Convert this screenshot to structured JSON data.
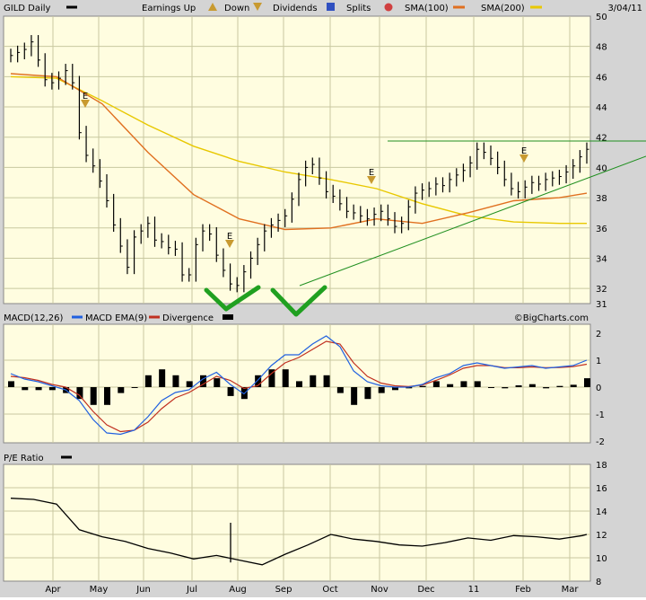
{
  "header": {
    "ticker": "GILD Daily",
    "earnings_label": "Earnings Up",
    "down_label": "Down",
    "dividends_label": "Dividends",
    "splits_label": "Splits",
    "sma100_label": "SMA(100)",
    "sma200_label": "SMA(200)",
    "date": "3/04/11"
  },
  "colors": {
    "panel_bg": "#fffde0",
    "frame_bg": "#d4d4d4",
    "grid": "#c8c8a0",
    "sma100": "#e07020",
    "sma200": "#e8c800",
    "trendline": "#209020",
    "macd": "#2060e0",
    "ema": "#c03020",
    "check": "#20a020",
    "earnings_marker": "#c89a30"
  },
  "price_panel": {
    "ytick_labels": [
      "50",
      "48",
      "46",
      "44",
      "42",
      "40",
      "38",
      "36",
      "34",
      "32",
      "31"
    ],
    "earnings_markers": [
      "E",
      "E",
      "E",
      "E"
    ]
  },
  "macd_panel": {
    "title": "MACD(12,26)",
    "ema_label": "MACD EMA(9)",
    "divergence_label": "Divergence",
    "watermark": "©BigCharts.com",
    "ytick_labels": [
      "2",
      "1",
      "0",
      "-1",
      "-2"
    ]
  },
  "pe_panel": {
    "title": "P/E Ratio",
    "ytick_labels": [
      "18",
      "16",
      "14",
      "12",
      "10",
      "8"
    ]
  },
  "x_labels": [
    "Apr",
    "May",
    "Jun",
    "Jul",
    "Aug",
    "Sep",
    "Oct",
    "Nov",
    "Dec",
    "11",
    "Feb",
    "Mar"
  ],
  "chart_data": [
    {
      "type": "line",
      "subtype": "ohlc",
      "ticker": "GILD",
      "ylim": [
        31,
        50
      ],
      "x_ticks": [
        "Apr",
        "May",
        "Jun",
        "Jul",
        "Aug",
        "Sep",
        "Oct",
        "Nov",
        "Dec",
        "11",
        "Feb",
        "Mar"
      ],
      "series": [
        {
          "name": "GILD Daily",
          "x": [
            0,
            3,
            6,
            9,
            12,
            15,
            18,
            21,
            24,
            27,
            30,
            33,
            36,
            39,
            42,
            45,
            48,
            51,
            54,
            57,
            60,
            63,
            66,
            69,
            72,
            75,
            78,
            81,
            84,
            87,
            90,
            93,
            96,
            99,
            102,
            105,
            108,
            111,
            114,
            117,
            120,
            123,
            126,
            129,
            132,
            135,
            138,
            141,
            144,
            147,
            150,
            153,
            156,
            159,
            162,
            165,
            168,
            171,
            174,
            177,
            180,
            183,
            186,
            189,
            192,
            195,
            198,
            201,
            204,
            207,
            210,
            213,
            216,
            219,
            222,
            225,
            228,
            231,
            234,
            237,
            240,
            243,
            246,
            249,
            252
          ],
          "values": [
            47.4,
            47.6,
            47.8,
            48.3,
            47.1,
            45.8,
            45.6,
            45.9,
            46.4,
            45.6,
            42.3,
            40.8,
            40.1,
            39.1,
            37.8,
            36.2,
            34.8,
            33.4,
            35.4,
            35.8,
            36.3,
            35.2,
            35.1,
            34.7,
            34.6,
            32.9,
            32.9,
            34.9,
            35.8,
            35.6,
            34.2,
            33.2,
            32.3,
            32.2,
            33.1,
            34.0,
            34.9,
            35.8,
            36.2,
            36.5,
            36.8,
            37.9,
            39.2,
            40.0,
            40.2,
            39.3,
            38.4,
            38.1,
            37.6,
            37.1,
            37.0,
            36.8,
            36.6,
            36.9,
            37.1,
            36.6,
            36.1,
            36.3,
            37.4,
            38.3,
            38.5,
            38.6,
            38.9,
            38.8,
            39.2,
            39.5,
            39.8,
            40.3,
            41.2,
            41.0,
            40.6,
            40.0,
            39.2,
            38.6,
            38.4,
            38.7,
            39.0,
            38.9,
            39.2,
            39.3,
            39.4,
            39.7,
            40.1,
            40.7,
            41.2
          ]
        },
        {
          "name": "SMA(100)",
          "x": [
            0,
            20,
            40,
            60,
            80,
            100,
            120,
            140,
            160,
            180,
            200,
            220,
            240,
            252
          ],
          "values": [
            46.2,
            46.0,
            44.2,
            41.0,
            38.2,
            36.6,
            35.9,
            36.0,
            36.6,
            36.3,
            37.0,
            37.8,
            38.0,
            38.3
          ]
        },
        {
          "name": "SMA(200)",
          "x": [
            0,
            20,
            40,
            60,
            80,
            100,
            120,
            140,
            160,
            180,
            200,
            220,
            240,
            252
          ],
          "values": [
            46.0,
            45.9,
            44.4,
            42.8,
            41.4,
            40.4,
            39.7,
            39.2,
            38.6,
            37.6,
            36.8,
            36.4,
            36.3,
            36.3
          ]
        }
      ]
    },
    {
      "type": "line",
      "subtype": "macd",
      "ylim": [
        -2,
        2
      ],
      "series": [
        {
          "name": "MACD(12,26)",
          "x": [
            0,
            6,
            12,
            18,
            24,
            30,
            36,
            42,
            48,
            54,
            60,
            66,
            72,
            78,
            84,
            90,
            96,
            102,
            108,
            114,
            120,
            126,
            132,
            138,
            144,
            150,
            156,
            162,
            168,
            174,
            180,
            186,
            192,
            198,
            204,
            210,
            216,
            222,
            228,
            234,
            240,
            246,
            252
          ],
          "values": [
            0.5,
            0.3,
            0.2,
            0.05,
            -0.1,
            -0.5,
            -1.2,
            -1.7,
            -1.75,
            -1.6,
            -1.1,
            -0.5,
            -0.2,
            -0.1,
            0.3,
            0.55,
            0.1,
            -0.25,
            0.25,
            0.8,
            1.2,
            1.2,
            1.6,
            1.9,
            1.5,
            0.6,
            0.2,
            0.05,
            0.0,
            0.0,
            0.1,
            0.35,
            0.5,
            0.8,
            0.9,
            0.8,
            0.7,
            0.75,
            0.8,
            0.7,
            0.75,
            0.8,
            1.0
          ]
        },
        {
          "name": "MACD EMA(9)",
          "x": [
            0,
            6,
            12,
            18,
            24,
            30,
            36,
            42,
            48,
            54,
            60,
            66,
            72,
            78,
            84,
            90,
            96,
            102,
            108,
            114,
            120,
            126,
            132,
            138,
            144,
            150,
            156,
            162,
            168,
            174,
            180,
            186,
            192,
            198,
            204,
            210,
            216,
            222,
            228,
            234,
            240,
            246,
            252
          ],
          "values": [
            0.4,
            0.35,
            0.25,
            0.1,
            0.0,
            -0.3,
            -0.9,
            -1.4,
            -1.65,
            -1.6,
            -1.3,
            -0.8,
            -0.4,
            -0.2,
            0.1,
            0.4,
            0.25,
            -0.05,
            0.05,
            0.5,
            0.9,
            1.1,
            1.4,
            1.7,
            1.6,
            0.9,
            0.4,
            0.15,
            0.05,
            0.02,
            0.08,
            0.25,
            0.45,
            0.7,
            0.8,
            0.8,
            0.72,
            0.72,
            0.75,
            0.72,
            0.73,
            0.76,
            0.85
          ]
        }
      ]
    },
    {
      "type": "line",
      "subtype": "pe_ratio",
      "ylim": [
        8,
        18
      ],
      "series": [
        {
          "name": "P/E Ratio",
          "x": [
            0,
            10,
            20,
            30,
            40,
            50,
            60,
            70,
            80,
            90,
            100,
            110,
            120,
            130,
            140,
            150,
            160,
            170,
            180,
            190,
            200,
            210,
            220,
            230,
            240,
            250,
            252
          ],
          "values": [
            15.1,
            15.0,
            14.6,
            12.4,
            11.8,
            11.4,
            10.8,
            10.4,
            9.9,
            10.2,
            9.8,
            9.4,
            10.3,
            11.1,
            12.0,
            11.6,
            11.4,
            11.1,
            11.0,
            11.3,
            11.7,
            11.5,
            11.9,
            11.8,
            11.6,
            11.9,
            12.0
          ]
        }
      ]
    }
  ]
}
